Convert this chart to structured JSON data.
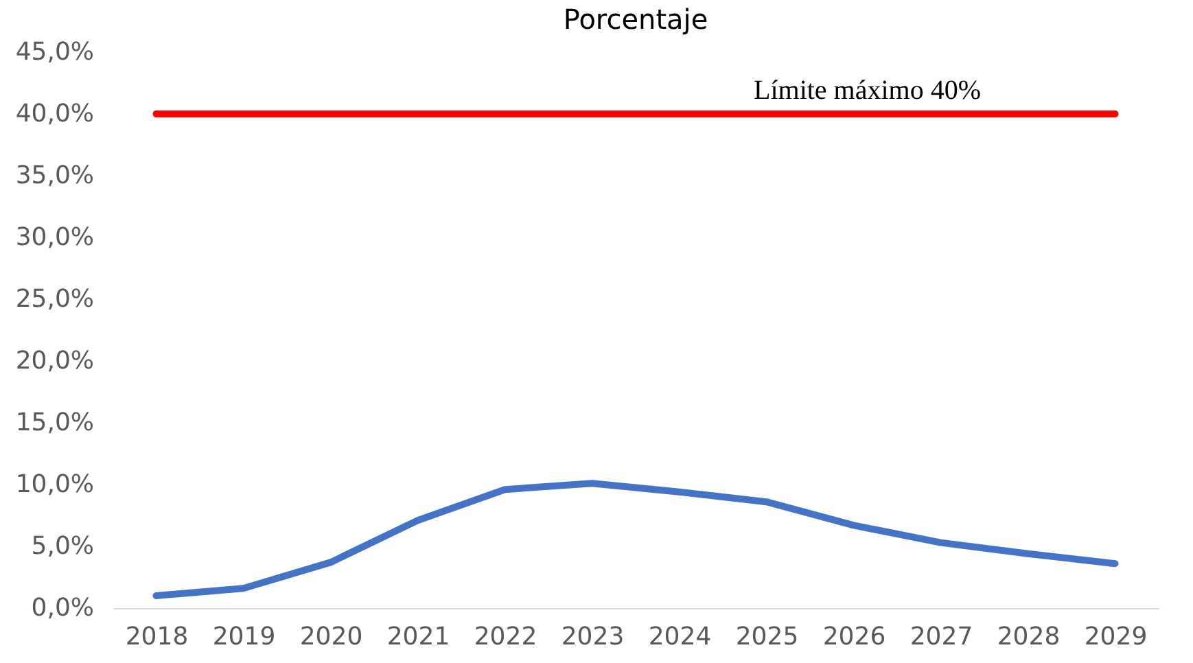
{
  "chart_data": {
    "type": "line",
    "title": "Porcentaje",
    "categories": [
      "2018",
      "2019",
      "2020",
      "2021",
      "2022",
      "2023",
      "2024",
      "2025",
      "2026",
      "2027",
      "2028",
      "2029"
    ],
    "series": [
      {
        "name": null,
        "color": "#4472c4",
        "values": [
          1.0,
          1.6,
          3.7,
          7.1,
          9.6,
          10.1,
          9.4,
          8.6,
          6.7,
          5.3,
          4.4,
          3.6
        ]
      },
      {
        "name": "Límite máximo 40%",
        "color": "#ff0000",
        "values": [
          40,
          40,
          40,
          40,
          40,
          40,
          40,
          40,
          40,
          40,
          40,
          40
        ]
      }
    ],
    "ylim": [
      0,
      45
    ],
    "yticks": [
      {
        "value": 0,
        "label": "0,0%"
      },
      {
        "value": 5,
        "label": "5,0%"
      },
      {
        "value": 10,
        "label": "10,0%"
      },
      {
        "value": 15,
        "label": "15,0%"
      },
      {
        "value": 20,
        "label": "20,0%"
      },
      {
        "value": 25,
        "label": "25,0%"
      },
      {
        "value": 30,
        "label": "30,0%"
      },
      {
        "value": 35,
        "label": "35,0%"
      },
      {
        "value": 40,
        "label": "40,0%"
      },
      {
        "value": 45,
        "label": "45,0%"
      }
    ],
    "grid": false,
    "marker": "none",
    "line_style": "solid"
  }
}
